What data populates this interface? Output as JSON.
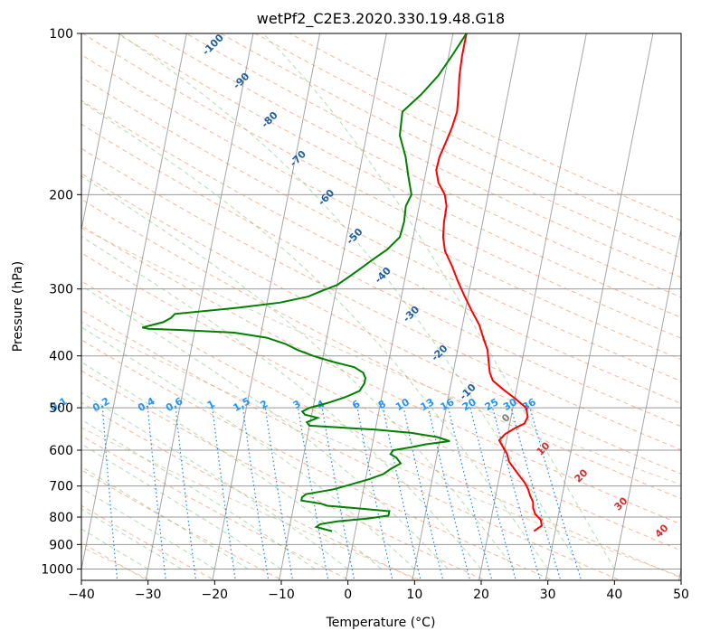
{
  "chart_data": {
    "type": "line",
    "title": "wetPf2_C2E3.2020.330.19.48.G18",
    "xlabel": "Temperature (°C)",
    "ylabel": "Pressure (hPa)",
    "xlim": [
      -40,
      50
    ],
    "ylim": [
      1050,
      100
    ],
    "y_scale": "log",
    "x_ticks": [
      -40,
      -30,
      -20,
      -10,
      0,
      10,
      20,
      30,
      40,
      50
    ],
    "y_ticks": [
      100,
      200,
      300,
      400,
      500,
      600,
      700,
      800,
      900,
      1000
    ],
    "grid": true,
    "series": [
      {
        "role": "temperature",
        "color": "#ff0000",
        "points": [
          [
            26.8,
            850
          ],
          [
            27.8,
            830
          ],
          [
            27.5,
            810
          ],
          [
            26.5,
            790
          ],
          [
            26.0,
            770
          ],
          [
            25.8,
            750
          ],
          [
            25.2,
            730
          ],
          [
            24.7,
            710
          ],
          [
            24.0,
            690
          ],
          [
            23.0,
            670
          ],
          [
            22.0,
            650
          ],
          [
            21.0,
            630
          ],
          [
            20.5,
            610
          ],
          [
            19.6,
            590
          ],
          [
            18.9,
            575
          ],
          [
            19.6,
            560
          ],
          [
            21.0,
            545
          ],
          [
            22.2,
            535
          ],
          [
            22.5,
            520
          ],
          [
            22.0,
            500
          ],
          [
            20.0,
            480
          ],
          [
            18.0,
            462
          ],
          [
            16.2,
            445
          ],
          [
            15.5,
            430
          ],
          [
            15.0,
            410
          ],
          [
            14.5,
            390
          ],
          [
            13.5,
            370
          ],
          [
            12.5,
            350
          ],
          [
            11.0,
            330
          ],
          [
            9.5,
            310
          ],
          [
            8.0,
            290
          ],
          [
            6.7,
            272
          ],
          [
            5.2,
            255
          ],
          [
            4.5,
            240
          ],
          [
            4.2,
            225
          ],
          [
            4.1,
            210
          ],
          [
            3.5,
            200
          ],
          [
            2.2,
            190
          ],
          [
            1.5,
            180
          ],
          [
            1.6,
            170
          ],
          [
            2.1,
            160
          ],
          [
            2.6,
            150
          ],
          [
            2.9,
            140
          ],
          [
            2.6,
            130
          ],
          [
            2.2,
            120
          ],
          [
            2.0,
            110
          ],
          [
            2.0,
            100
          ]
        ]
      },
      {
        "role": "dewpoint",
        "color": "#008000",
        "points": [
          [
            -3.5,
            850
          ],
          [
            -6.0,
            835
          ],
          [
            -5.5,
            825
          ],
          [
            -3.0,
            815
          ],
          [
            1.5,
            805
          ],
          [
            4.5,
            795
          ],
          [
            4.5,
            780
          ],
          [
            -0.5,
            770
          ],
          [
            -5.0,
            762
          ],
          [
            -6.0,
            755
          ],
          [
            -9.0,
            745
          ],
          [
            -9.0,
            735
          ],
          [
            -8.5,
            725
          ],
          [
            -4.5,
            710
          ],
          [
            -2.0,
            695
          ],
          [
            0.5,
            680
          ],
          [
            2.5,
            665
          ],
          [
            3.5,
            650
          ],
          [
            4.8,
            635
          ],
          [
            4.0,
            620
          ],
          [
            3.0,
            610
          ],
          [
            3.3,
            600
          ],
          [
            6.0,
            592
          ],
          [
            8.0,
            585
          ],
          [
            11.5,
            577
          ],
          [
            9.5,
            567
          ],
          [
            5.5,
            557
          ],
          [
            0.0,
            549
          ],
          [
            -10.0,
            540
          ],
          [
            -10.5,
            532
          ],
          [
            -9.0,
            522
          ],
          [
            -11.0,
            515
          ],
          [
            -11.5,
            508
          ],
          [
            -10.5,
            500
          ],
          [
            -8.0,
            490
          ],
          [
            -5.5,
            478
          ],
          [
            -3.5,
            465
          ],
          [
            -3.0,
            450
          ],
          [
            -3.0,
            440
          ],
          [
            -3.5,
            430
          ],
          [
            -5.0,
            420
          ],
          [
            -8.5,
            410
          ],
          [
            -11.5,
            400
          ],
          [
            -14.0,
            390
          ],
          [
            -16.0,
            380
          ],
          [
            -19.0,
            370
          ],
          [
            -24.0,
            362
          ],
          [
            -32.0,
            358
          ],
          [
            -37.0,
            356
          ],
          [
            -38.0,
            354
          ],
          [
            -35.0,
            346
          ],
          [
            -34.0,
            340
          ],
          [
            -33.5,
            334
          ],
          [
            -24.0,
            325
          ],
          [
            -18.0,
            318
          ],
          [
            -14.0,
            310
          ],
          [
            -12.0,
            302
          ],
          [
            -10.0,
            295
          ],
          [
            -8.5,
            285
          ],
          [
            -7.0,
            275
          ],
          [
            -5.5,
            265
          ],
          [
            -3.5,
            253
          ],
          [
            -2.0,
            240
          ],
          [
            -1.8,
            225
          ],
          [
            -2.0,
            210
          ],
          [
            -1.5,
            200
          ],
          [
            -2.5,
            185
          ],
          [
            -3.5,
            170
          ],
          [
            -5.0,
            155
          ],
          [
            -5.3,
            140
          ],
          [
            -3.0,
            130
          ],
          [
            -1.0,
            120
          ],
          [
            0.5,
            110
          ],
          [
            2.0,
            100
          ]
        ]
      }
    ],
    "dry_adiabat_labels": [
      "-100",
      "-90",
      "-80",
      "-70",
      "-60",
      "-50",
      "-40",
      "-30",
      "-20",
      "-10",
      "0",
      "10",
      "20",
      "30",
      "40"
    ],
    "mixing_ratio_labels": [
      "0.1",
      "0.2",
      "0.4",
      "0.6",
      "1",
      "1.5",
      "2",
      "3",
      "4",
      "6",
      "8",
      "10",
      "13",
      "16",
      "20",
      "25",
      "30",
      "36"
    ]
  }
}
